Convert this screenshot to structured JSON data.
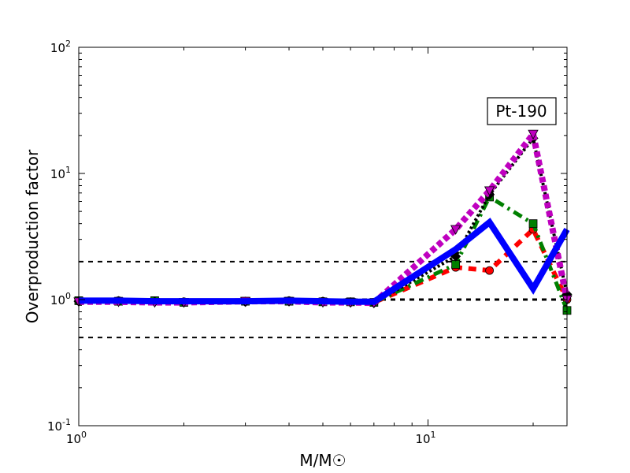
{
  "chart_data": {
    "type": "line",
    "title": "",
    "xlabel": "M/M☉",
    "ylabel": "Overproduction factor",
    "xscale": "log",
    "yscale": "log",
    "xlim": [
      1,
      25
    ],
    "ylim": [
      0.1,
      100
    ],
    "x_ticks": [
      {
        "value": 1,
        "base": "10",
        "exp": "0"
      },
      {
        "value": 10,
        "base": "10",
        "exp": "1"
      }
    ],
    "y_ticks": [
      {
        "value": 0.1,
        "base": "10",
        "exp": "-1"
      },
      {
        "value": 1,
        "base": "10",
        "exp": "0"
      },
      {
        "value": 10,
        "base": "10",
        "exp": "1"
      },
      {
        "value": 100,
        "base": "10",
        "exp": "2"
      }
    ],
    "annotation": "Pt-190",
    "reference_lines": [
      {
        "y": 2,
        "style": "dashed",
        "color": "#000000"
      },
      {
        "y": 1,
        "style": "dashed",
        "color": "#000000"
      },
      {
        "y": 0.5,
        "style": "dashed",
        "color": "#000000"
      }
    ],
    "grid": false,
    "legend": "none",
    "series": [
      {
        "color": "#ff0000",
        "marker": "circle",
        "dash": "10,8",
        "width": 6,
        "x": [
          1,
          1.3,
          1.65,
          2,
          3,
          4,
          5,
          6,
          7,
          12,
          15,
          20,
          25
        ],
        "y": [
          0.97,
          0.98,
          0.97,
          0.96,
          0.97,
          0.98,
          0.97,
          0.96,
          0.95,
          1.8,
          1.7,
          3.6,
          1.0
        ]
      },
      {
        "color": "#008000",
        "marker": "square",
        "dash": "12,6,3,6",
        "width": 5,
        "x": [
          1,
          1.3,
          1.65,
          2,
          3,
          4,
          5,
          6,
          7,
          12,
          15,
          20,
          25
        ],
        "y": [
          0.98,
          0.97,
          0.98,
          0.95,
          0.97,
          0.97,
          0.96,
          0.96,
          0.95,
          1.9,
          6.5,
          4.0,
          0.82
        ]
      },
      {
        "color": "#000000",
        "marker": "diamond",
        "dash": "3,3",
        "width": 4,
        "x": [
          1,
          1.3,
          1.65,
          2,
          3,
          4,
          5,
          6,
          7,
          12,
          15,
          20,
          25
        ],
        "y": [
          0.97,
          0.97,
          0.96,
          0.95,
          0.96,
          0.97,
          0.96,
          0.95,
          0.94,
          2.2,
          6.8,
          19.0,
          1.1
        ]
      },
      {
        "color": "#bf00bf",
        "marker": "triangle-down",
        "dash": "7,4",
        "width": 8,
        "x": [
          1,
          1.3,
          1.65,
          2,
          3,
          4,
          5,
          6,
          7,
          12,
          15,
          20,
          25
        ],
        "y": [
          0.96,
          0.96,
          0.95,
          0.95,
          0.97,
          0.97,
          0.95,
          0.95,
          0.94,
          3.6,
          7.3,
          20.5,
          1.0
        ]
      },
      {
        "color": "#0000ff",
        "marker": "none",
        "dash": "",
        "width": 8,
        "x": [
          1,
          1.3,
          1.65,
          2,
          3,
          4,
          5,
          6,
          7,
          12,
          15,
          20,
          25
        ],
        "y": [
          0.98,
          0.98,
          0.97,
          0.97,
          0.97,
          0.98,
          0.97,
          0.96,
          0.96,
          2.5,
          4.1,
          1.22,
          3.6
        ]
      }
    ]
  }
}
